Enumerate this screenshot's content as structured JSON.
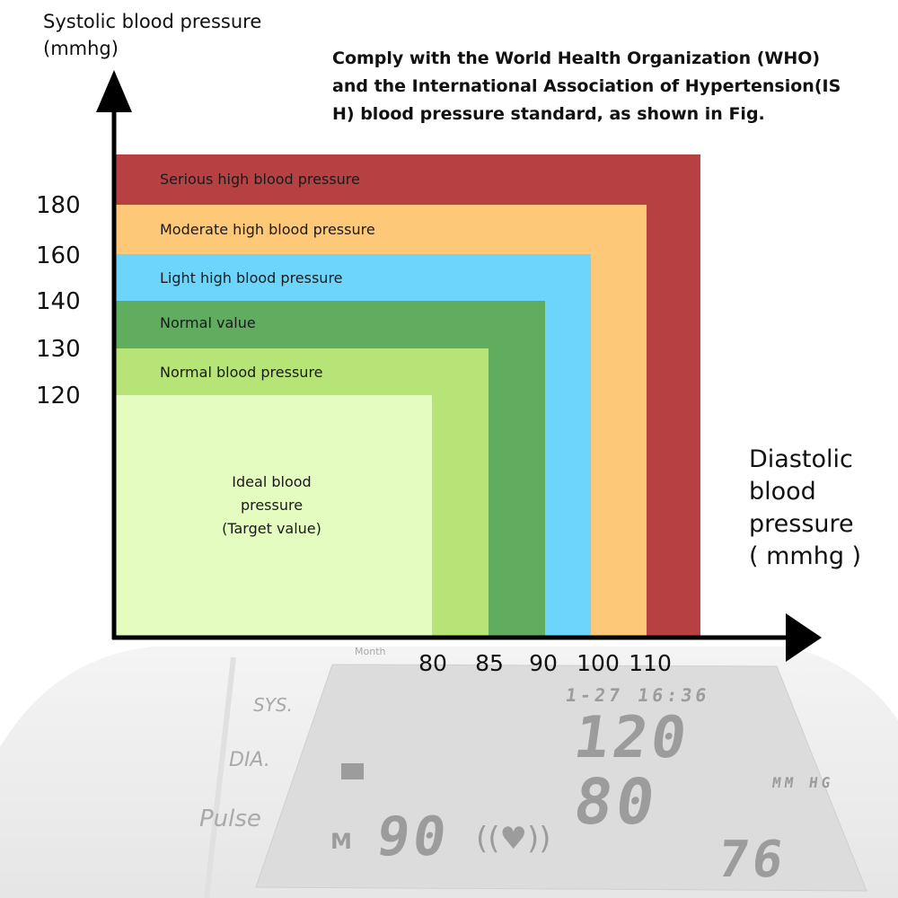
{
  "header": {
    "y_axis_title_line1": "Systolic blood pressure",
    "y_axis_title_line2": "(mmhg)",
    "note_line1": "Comply with the World Health Organization (WHO)",
    "note_line2": "and the International Association of Hypertension(IS",
    "note_line3": "H) blood pressure standard, as shown in Fig."
  },
  "x_axis_title": {
    "line1": "Diastolic",
    "line2": "blood",
    "line3": "pressure",
    "line4": "( mmhg )"
  },
  "chart_data": {
    "type": "nested-region",
    "xlabel": "Diastolic blood pressure ( mmhg )",
    "ylabel": "Systolic blood pressure (mmhg)",
    "x_ticks": [
      "80",
      "85",
      "90",
      "100",
      "110"
    ],
    "y_ticks": [
      "180",
      "160",
      "140",
      "130",
      "120"
    ],
    "bands": [
      {
        "label": "Serious high blood pressure",
        "systolic_min": 180,
        "diastolic_min": 110,
        "color": "#b74043"
      },
      {
        "label": "Moderate high blood pressure",
        "systolic_max": 180,
        "diastolic_max": 110,
        "color": "#fdc878"
      },
      {
        "label": "Light high blood pressure",
        "systolic_max": 160,
        "diastolic_max": 100,
        "color": "#6dd5fb"
      },
      {
        "label": "Normal value",
        "systolic_max": 140,
        "diastolic_max": 90,
        "color": "#60ad60"
      },
      {
        "label": "Normal blood pressure",
        "systolic_max": 130,
        "diastolic_max": 85,
        "color": "#b6e477"
      },
      {
        "label_lines": [
          "Ideal blood",
          "pressure",
          "(Target value)"
        ],
        "systolic_max": 120,
        "diastolic_max": 80,
        "color": "#e4fcc0"
      }
    ]
  },
  "device": {
    "sys_label": "SYS.",
    "dia_label": "DIA.",
    "pulse_label": "Pulse",
    "month_label": "Month",
    "datetime": "1-27 16:36",
    "systolic": "120",
    "diastolic": "80",
    "unit": "MM HG",
    "memory_label": "M",
    "memory_number": "90",
    "pulse_value": "76"
  }
}
